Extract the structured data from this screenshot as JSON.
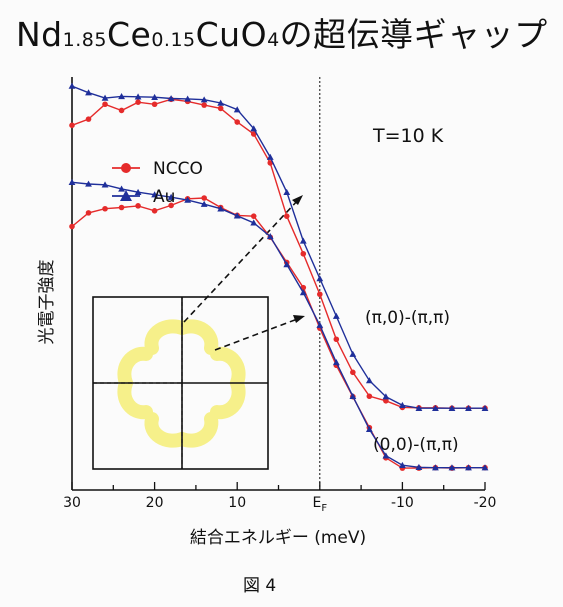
{
  "title": {
    "parts": [
      {
        "t": "Nd",
        "sub": false
      },
      {
        "t": "1.85",
        "sub": true
      },
      {
        "t": "Ce",
        "sub": false
      },
      {
        "t": "0.15",
        "sub": true
      },
      {
        "t": "CuO",
        "sub": false
      },
      {
        "t": "4",
        "sub": true
      },
      {
        "t": "の超伝導ギャップ",
        "sub": false
      }
    ]
  },
  "figure_caption": "図 4",
  "colors": {
    "ncco": "#e52b2b",
    "au": "#1f2f9a",
    "fermi_surface": "#f6f08a",
    "axis": "#111111"
  },
  "chart_data": {
    "type": "line",
    "title": "",
    "xlabel": "結合エネルギー (meV)",
    "ylabel": "光電子強度",
    "xlim": [
      30,
      -20
    ],
    "ylim": [
      0,
      1
    ],
    "x_ticks": [
      "30",
      "20",
      "10",
      "E_F",
      "-10",
      "-20"
    ],
    "x_tick_values": [
      30,
      20,
      10,
      0,
      -10,
      -20
    ],
    "fermi_level_label": "E_F",
    "grid": false,
    "legend_position": "upper-left",
    "annotations": [
      "T=10 K",
      "(π,0)-(π,π)",
      "(0,0)-(π,π)"
    ],
    "legend": [
      {
        "name": "NCCO",
        "marker": "circle"
      },
      {
        "name": "Au",
        "marker": "triangle"
      }
    ],
    "spectra": [
      {
        "label": "(π,0)-(π,π)",
        "series": [
          {
            "name": "NCCO",
            "x": [
              30,
              28,
              26,
              24,
              22,
              20,
              18,
              16,
              14,
              12,
              10,
              8,
              6,
              4,
              2,
              0,
              -2,
              -4,
              -6,
              -8,
              -10,
              -12,
              -14,
              -16,
              -18,
              -20
            ],
            "y": [
              0.883,
              0.898,
              0.934,
              0.919,
              0.939,
              0.934,
              0.946,
              0.941,
              0.932,
              0.924,
              0.891,
              0.862,
              0.792,
              0.663,
              0.572,
              0.474,
              0.365,
              0.285,
              0.227,
              0.216,
              0.2,
              0.199,
              0.199,
              0.198,
              0.198,
              0.198
            ]
          },
          {
            "name": "Au",
            "x": [
              30,
              28,
              26,
              24,
              22,
              20,
              18,
              16,
              14,
              12,
              10,
              8,
              6,
              4,
              2,
              0,
              -2,
              -4,
              -6,
              -8,
              -10,
              -12,
              -14,
              -16,
              -18,
              -20
            ],
            "y": [
              0.978,
              0.962,
              0.949,
              0.953,
              0.952,
              0.951,
              0.948,
              0.947,
              0.945,
              0.937,
              0.921,
              0.875,
              0.806,
              0.721,
              0.603,
              0.512,
              0.421,
              0.329,
              0.265,
              0.226,
              0.205,
              0.198,
              0.198,
              0.198,
              0.198,
              0.198
            ]
          }
        ]
      },
      {
        "label": "(0,0)-(π,π)",
        "series": [
          {
            "name": "NCCO",
            "x": [
              30,
              28,
              26,
              24,
              22,
              20,
              18,
              16,
              14,
              12,
              10,
              8,
              6,
              4,
              2,
              0,
              -2,
              -4,
              -6,
              -8,
              -10,
              -12,
              -14,
              -16,
              -18,
              -20
            ],
            "y": [
              0.638,
              0.671,
              0.681,
              0.684,
              0.688,
              0.676,
              0.689,
              0.705,
              0.707,
              0.684,
              0.665,
              0.663,
              0.612,
              0.551,
              0.49,
              0.392,
              0.302,
              0.226,
              0.151,
              0.078,
              0.053,
              0.053,
              0.054,
              0.053,
              0.054,
              0.054
            ]
          },
          {
            "name": "Au",
            "x": [
              30,
              28,
              26,
              24,
              22,
              20,
              18,
              16,
              14,
              12,
              10,
              8,
              6,
              4,
              2,
              0,
              -2,
              -4,
              -6,
              -8,
              -10,
              -12,
              -14,
              -16,
              -18,
              -20
            ],
            "y": [
              0.745,
              0.741,
              0.739,
              0.729,
              0.721,
              0.715,
              0.709,
              0.702,
              0.692,
              0.681,
              0.664,
              0.647,
              0.614,
              0.546,
              0.478,
              0.399,
              0.309,
              0.227,
              0.147,
              0.083,
              0.06,
              0.055,
              0.054,
              0.054,
              0.054,
              0.054
            ]
          }
        ]
      }
    ]
  }
}
